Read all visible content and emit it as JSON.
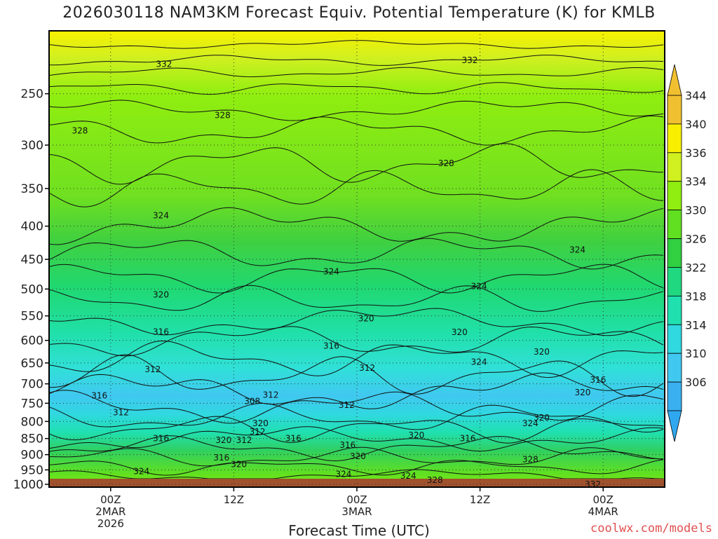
{
  "title": "2026030118 NAM3KM Forecast Equiv. Potential Temperature (K) for KMLB",
  "xlabel": "Forecast Time (UTC)",
  "credit": "coolwx.com/models",
  "chart_data": {
    "type": "heatmap",
    "title": "2026030118 NAM3KM Forecast Equiv. Potential Temperature (K) for KMLB",
    "xlabel": "Forecast Time (UTC)",
    "ylabel": "",
    "x_ticks": [
      {
        "label": [
          "00Z",
          "2MAR",
          "2026"
        ],
        "hour": 6
      },
      {
        "label": [
          "12Z"
        ],
        "hour": 18
      },
      {
        "label": [
          "00Z",
          "3MAR"
        ],
        "hour": 30
      },
      {
        "label": [
          "12Z"
        ],
        "hour": 42
      },
      {
        "label": [
          "00Z",
          "4MAR"
        ],
        "hour": 54
      }
    ],
    "x_range_hours": [
      0,
      60
    ],
    "y_scale": "log-pressure (hPa), inverted",
    "y_ticks": [
      250,
      300,
      350,
      400,
      450,
      500,
      550,
      600,
      650,
      700,
      750,
      800,
      850,
      900,
      950,
      1000
    ],
    "y_range": [
      1010,
      200
    ],
    "colorbar": {
      "ticks": [
        306,
        310,
        314,
        318,
        322,
        326,
        330,
        334,
        336,
        340,
        344
      ],
      "colors": [
        "#3ab0f0",
        "#40c8f0",
        "#30d8e0",
        "#20e0b0",
        "#20d880",
        "#30d040",
        "#60e020",
        "#90ee10",
        "#d0f020",
        "#f8f000",
        "#f0c030"
      ]
    },
    "contour_labels": [
      {
        "value": "332",
        "hour": 11.2,
        "p": 225
      },
      {
        "value": "332",
        "hour": 41.0,
        "p": 222
      },
      {
        "value": "328",
        "hour": 16.9,
        "p": 270
      },
      {
        "value": "328",
        "hour": 3.0,
        "p": 285
      },
      {
        "value": "328",
        "hour": 38.7,
        "p": 320
      },
      {
        "value": "324",
        "hour": 10.9,
        "p": 385
      },
      {
        "value": "324",
        "hour": 27.5,
        "p": 470
      },
      {
        "value": "324",
        "hour": 51.5,
        "p": 435
      },
      {
        "value": "324",
        "hour": 41.9,
        "p": 495
      },
      {
        "value": "320",
        "hour": 10.9,
        "p": 510
      },
      {
        "value": "320",
        "hour": 30.9,
        "p": 555
      },
      {
        "value": "320",
        "hour": 40.0,
        "p": 583
      },
      {
        "value": "320",
        "hour": 48.0,
        "p": 625
      },
      {
        "value": "316",
        "hour": 10.9,
        "p": 582
      },
      {
        "value": "316",
        "hour": 27.5,
        "p": 612
      },
      {
        "value": "316",
        "hour": 53.5,
        "p": 690
      },
      {
        "value": "316",
        "hour": 4.9,
        "p": 730
      },
      {
        "value": "312",
        "hour": 10.1,
        "p": 665
      },
      {
        "value": "312",
        "hour": 31.0,
        "p": 662
      },
      {
        "value": "312",
        "hour": 21.6,
        "p": 728
      },
      {
        "value": "312",
        "hour": 29.0,
        "p": 755
      },
      {
        "value": "312",
        "hour": 7.0,
        "p": 775
      },
      {
        "value": "312",
        "hour": 20.3,
        "p": 830
      },
      {
        "value": "312",
        "hour": 19.0,
        "p": 855
      },
      {
        "value": "308",
        "hour": 19.8,
        "p": 745
      },
      {
        "value": "320",
        "hour": 20.6,
        "p": 805
      },
      {
        "value": "320",
        "hour": 17.0,
        "p": 855
      },
      {
        "value": "320",
        "hour": 35.8,
        "p": 840
      },
      {
        "value": "320",
        "hour": 30.1,
        "p": 905
      },
      {
        "value": "320",
        "hour": 18.5,
        "p": 932
      },
      {
        "value": "320",
        "hour": 52.0,
        "p": 722
      },
      {
        "value": "320",
        "hour": 48.0,
        "p": 790
      },
      {
        "value": "316",
        "hour": 10.9,
        "p": 850
      },
      {
        "value": "316",
        "hour": 23.8,
        "p": 850
      },
      {
        "value": "316",
        "hour": 29.1,
        "p": 870
      },
      {
        "value": "316",
        "hour": 16.8,
        "p": 910
      },
      {
        "value": "316",
        "hour": 40.8,
        "p": 850
      },
      {
        "value": "324",
        "hour": 41.9,
        "p": 648
      },
      {
        "value": "324",
        "hour": 46.9,
        "p": 805
      },
      {
        "value": "324",
        "hour": 9.0,
        "p": 955
      },
      {
        "value": "324",
        "hour": 28.7,
        "p": 965
      },
      {
        "value": "324",
        "hour": 35.0,
        "p": 970
      },
      {
        "value": "328",
        "hour": 37.6,
        "p": 985
      },
      {
        "value": "328",
        "hour": 46.9,
        "p": 915
      },
      {
        "value": "332",
        "hour": 53.0,
        "p": 1000
      }
    ],
    "grid": "dotted at pressure ticks and time ticks"
  }
}
